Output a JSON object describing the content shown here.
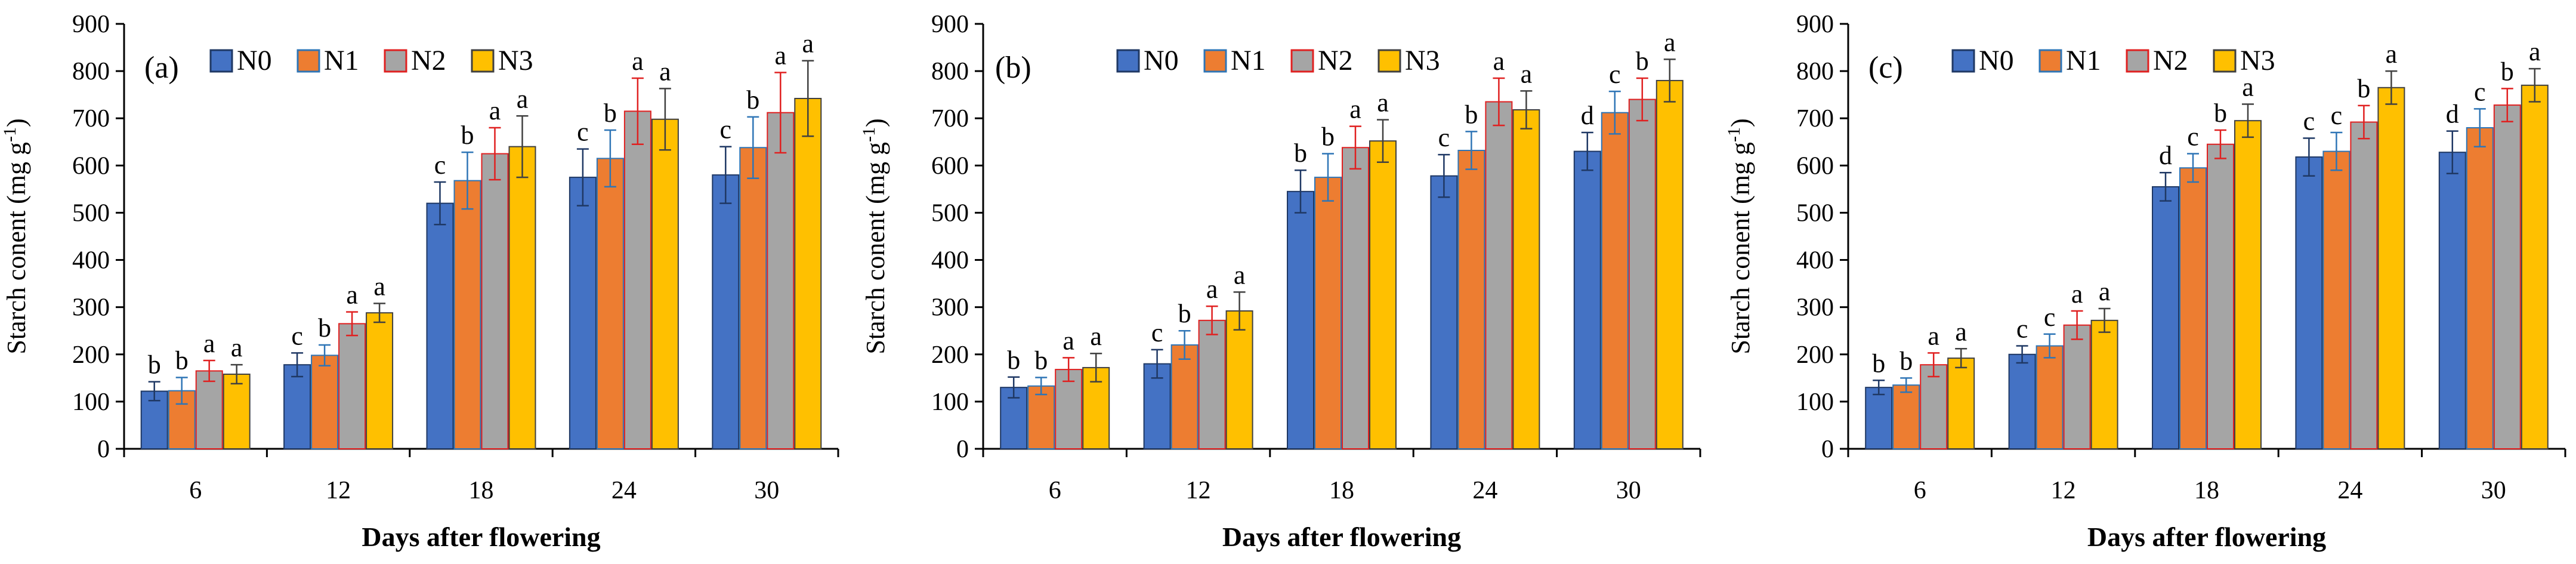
{
  "chart_data": [
    {
      "type": "bar",
      "panel_label": "(a)",
      "categories": [
        "6",
        "12",
        "18",
        "24",
        "30"
      ],
      "xlabel": "Days after flowering",
      "ylabel_text": "Starch conent (mg g",
      "ylabel_sup": "-1",
      "ylabel_close": ")",
      "ylim": [
        0,
        900
      ],
      "yticks": [
        "0",
        "100",
        "200",
        "300",
        "400",
        "500",
        "600",
        "700",
        "800",
        "900"
      ],
      "legend_position": "top-left",
      "series": [
        {
          "name": "N0",
          "values": [
            122,
            178,
            520,
            575,
            580
          ],
          "errors": [
            20,
            25,
            45,
            60,
            60
          ],
          "letters": [
            "b",
            "c",
            "c",
            "c",
            "c"
          ]
        },
        {
          "name": "N1",
          "values": [
            123,
            198,
            568,
            615,
            638
          ],
          "errors": [
            28,
            22,
            60,
            60,
            65
          ],
          "letters": [
            "b",
            "b",
            "b",
            "b",
            "b"
          ]
        },
        {
          "name": "N2",
          "values": [
            165,
            265,
            625,
            715,
            712
          ],
          "errors": [
            22,
            25,
            55,
            70,
            85
          ],
          "letters": [
            "a",
            "a",
            "a",
            "a",
            "a"
          ]
        },
        {
          "name": "N3",
          "values": [
            158,
            288,
            640,
            698,
            742
          ],
          "errors": [
            20,
            20,
            65,
            65,
            80
          ],
          "letters": [
            "a",
            "a",
            "a",
            "a",
            "a"
          ]
        }
      ]
    },
    {
      "type": "bar",
      "panel_label": "(b)",
      "categories": [
        "6",
        "12",
        "18",
        "24",
        "30"
      ],
      "xlabel": "Days after flowering",
      "ylabel_text": "Starch conent (mg g",
      "ylabel_sup": "-1",
      "ylabel_close": ")",
      "ylim": [
        0,
        900
      ],
      "yticks": [
        "0",
        "100",
        "200",
        "300",
        "400",
        "500",
        "600",
        "700",
        "800",
        "900"
      ],
      "legend_position": "top-center",
      "series": [
        {
          "name": "N0",
          "values": [
            130,
            180,
            545,
            578,
            630
          ],
          "errors": [
            22,
            30,
            45,
            45,
            40
          ],
          "letters": [
            "b",
            "c",
            "b",
            "c",
            "d"
          ]
        },
        {
          "name": "N1",
          "values": [
            133,
            220,
            575,
            632,
            712
          ],
          "errors": [
            18,
            30,
            50,
            40,
            45
          ],
          "letters": [
            "b",
            "b",
            "b",
            "b",
            "c"
          ]
        },
        {
          "name": "N2",
          "values": [
            168,
            272,
            638,
            735,
            740
          ],
          "errors": [
            25,
            30,
            45,
            50,
            45
          ],
          "letters": [
            "a",
            "a",
            "a",
            "a",
            "b"
          ]
        },
        {
          "name": "N3",
          "values": [
            172,
            292,
            652,
            718,
            780
          ],
          "errors": [
            30,
            40,
            45,
            40,
            45
          ],
          "letters": [
            "a",
            "a",
            "a",
            "a",
            "a"
          ]
        }
      ]
    },
    {
      "type": "bar",
      "panel_label": "(c)",
      "categories": [
        "6",
        "12",
        "18",
        "24",
        "30"
      ],
      "xlabel": "Days after flowering",
      "ylabel_text": "Starch conent (mg g",
      "ylabel_sup": "-1",
      "ylabel_close": ")",
      "ylim": [
        0,
        900
      ],
      "yticks": [
        "0",
        "100",
        "200",
        "300",
        "400",
        "500",
        "600",
        "700",
        "800",
        "900"
      ],
      "legend_position": "top-left",
      "series": [
        {
          "name": "N0",
          "values": [
            130,
            200,
            555,
            618,
            628
          ],
          "errors": [
            15,
            18,
            30,
            40,
            45
          ],
          "letters": [
            "b",
            "c",
            "d",
            "c",
            "d"
          ]
        },
        {
          "name": "N1",
          "values": [
            135,
            218,
            595,
            630,
            680
          ],
          "errors": [
            15,
            25,
            30,
            40,
            40
          ],
          "letters": [
            "b",
            "c",
            "c",
            "c",
            "c"
          ]
        },
        {
          "name": "N2",
          "values": [
            178,
            262,
            645,
            692,
            728
          ],
          "errors": [
            25,
            30,
            30,
            35,
            35
          ],
          "letters": [
            "a",
            "a",
            "b",
            "b",
            "b"
          ]
        },
        {
          "name": "N3",
          "values": [
            192,
            272,
            695,
            765,
            770
          ],
          "errors": [
            20,
            25,
            35,
            35,
            35
          ],
          "letters": [
            "a",
            "a",
            "a",
            "a",
            "a"
          ]
        }
      ]
    }
  ],
  "series_style": {
    "N0": {
      "fill": "#4472C4",
      "error_color": "#1F3864"
    },
    "N1": {
      "fill": "#ED7D31",
      "error_color": "#2E75B6"
    },
    "N2": {
      "fill": "#A5A5A5",
      "error_color": "#E02020"
    },
    "N3": {
      "fill": "#FFC000",
      "error_color": "#404040"
    }
  }
}
